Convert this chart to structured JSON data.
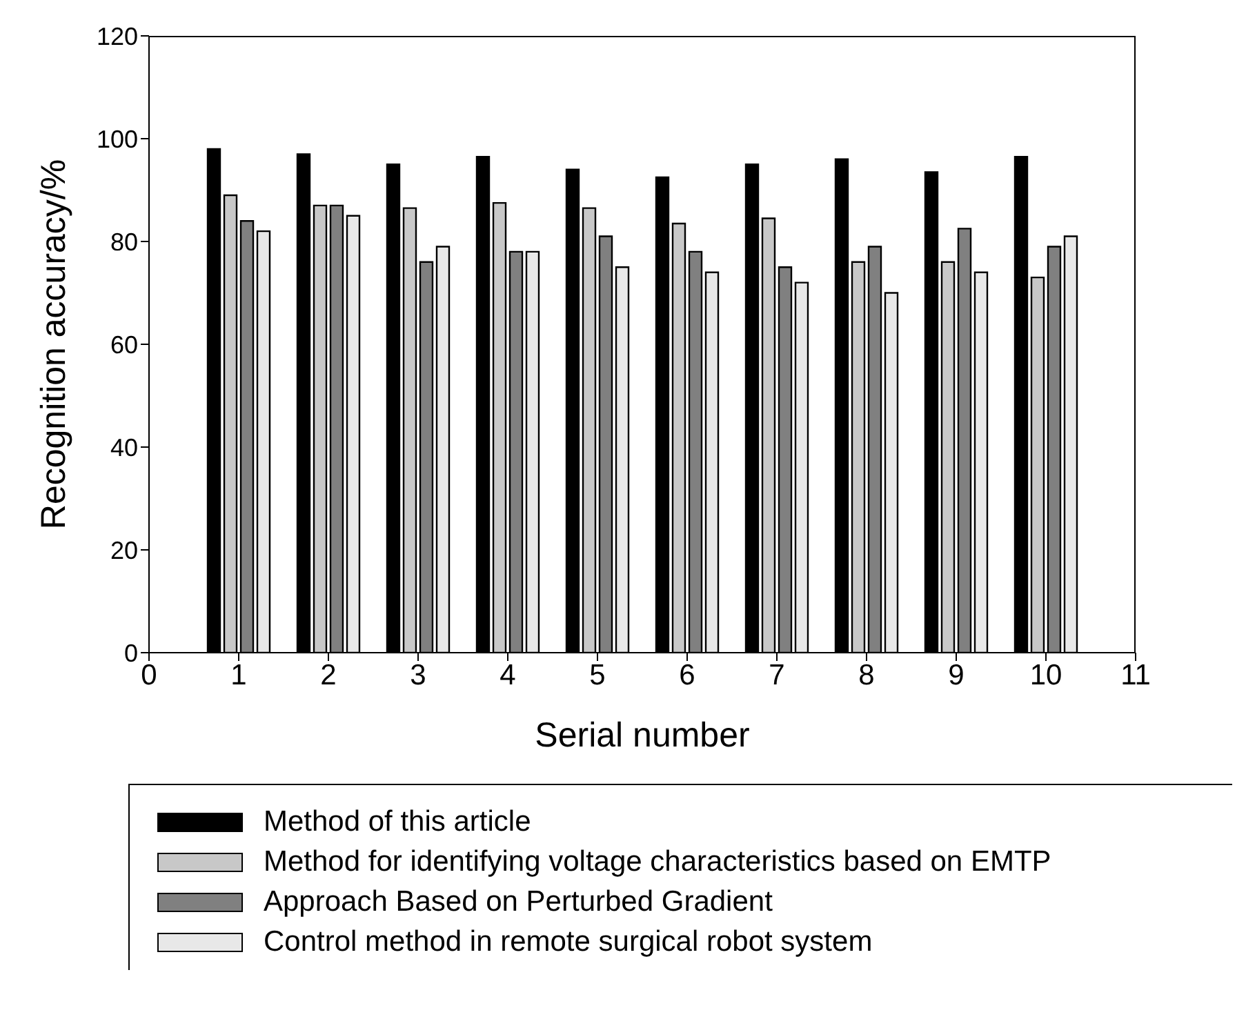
{
  "chart_data": {
    "type": "bar",
    "xlabel": "Serial number",
    "ylabel": "Recognition accuracy/%",
    "x": [
      1,
      2,
      3,
      4,
      5,
      6,
      7,
      8,
      9,
      10
    ],
    "xlim": [
      0,
      11
    ],
    "xticks": [
      0,
      1,
      2,
      3,
      4,
      5,
      6,
      7,
      8,
      9,
      10,
      11
    ],
    "ylim": [
      0,
      120
    ],
    "yticks": [
      0,
      20,
      40,
      60,
      80,
      100,
      120
    ],
    "grid": false,
    "legend": "bottom",
    "series": [
      {
        "name": "Method of this article",
        "color": "#000000",
        "values": [
          98,
          97,
          95,
          96.5,
          94,
          92.5,
          95,
          96,
          93.5,
          96.5
        ]
      },
      {
        "name": "Method for identifying voltage characteristics based on EMTP",
        "color": "#c8c8c8",
        "values": [
          89,
          87,
          86.5,
          87.5,
          86.5,
          83.5,
          84.5,
          76,
          76,
          73
        ]
      },
      {
        "name": "Approach Based on Perturbed Gradient",
        "color": "#808080",
        "values": [
          84,
          87,
          76,
          78,
          81,
          78,
          75,
          79,
          82.5,
          79
        ]
      },
      {
        "name": "Control method in remote surgical robot system",
        "color": "#e8e8e8",
        "values": [
          82,
          85,
          79,
          78,
          75,
          74,
          72,
          70,
          74,
          81
        ]
      }
    ]
  }
}
